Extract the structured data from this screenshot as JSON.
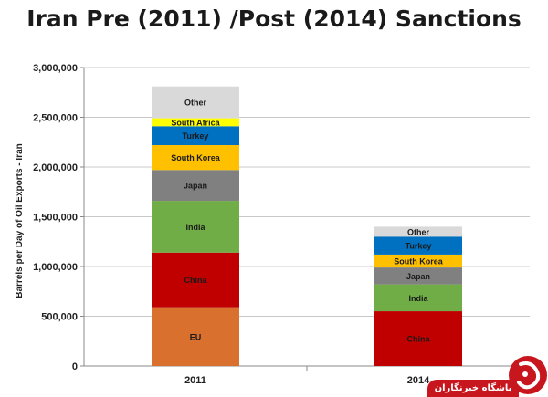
{
  "chart_data": {
    "type": "bar",
    "stacked": true,
    "title": "Iran Pre (2011) /Post  (2014) Sanctions",
    "ylabel": "Barrels per Day of Oil Exports - Iran",
    "xlabel": "",
    "ylim": [
      0,
      3000000
    ],
    "yticks": [
      "0",
      "500,000",
      "1,000,000",
      "1,500,000",
      "2,000,000",
      "2,500,000",
      "3,000,000"
    ],
    "grid": true,
    "legend": "none (segments labeled inside bars)",
    "categories": [
      "2011",
      "2014"
    ],
    "bars": [
      {
        "category": "2011",
        "segments": [
          {
            "name": "EU",
            "value": 590000,
            "color": "#d9702e",
            "text_color": "#1a1a1a"
          },
          {
            "name": "China",
            "value": 550000,
            "color": "#c00000",
            "text_color": "#1a1a1a"
          },
          {
            "name": "India",
            "value": 520000,
            "color": "#70ad47",
            "text_color": "#1a1a1a"
          },
          {
            "name": "Japan",
            "value": 310000,
            "color": "#808080",
            "text_color": "#1a1a1a"
          },
          {
            "name": "South Korea",
            "value": 250000,
            "color": "#ffc000",
            "text_color": "#1a1a1a"
          },
          {
            "name": "Turkey",
            "value": 190000,
            "color": "#0070c0",
            "text_color": "#1a1a1a"
          },
          {
            "name": "South Africa",
            "value": 80000,
            "color": "#ffff00",
            "text_color": "#1a1a1a"
          },
          {
            "name": "Other",
            "value": 320000,
            "color": "#d9d9d9",
            "text_color": "#1a1a1a"
          }
        ]
      },
      {
        "category": "2014",
        "segments": [
          {
            "name": "China",
            "value": 550000,
            "color": "#c00000",
            "text_color": "#1a1a1a"
          },
          {
            "name": "India",
            "value": 270000,
            "color": "#70ad47",
            "text_color": "#1a1a1a"
          },
          {
            "name": "Japan",
            "value": 170000,
            "color": "#808080",
            "text_color": "#1a1a1a"
          },
          {
            "name": "South Korea",
            "value": 130000,
            "color": "#ffc000",
            "text_color": "#1a1a1a"
          },
          {
            "name": "Turkey",
            "value": 180000,
            "color": "#0070c0",
            "text_color": "#1a1a1a"
          },
          {
            "name": "Other",
            "value": 100000,
            "color": "#d9d9d9",
            "text_color": "#1a1a1a"
          }
        ]
      }
    ]
  },
  "watermark": {
    "text": "باشگاه خبرنگاران",
    "color": "#c8161e"
  }
}
